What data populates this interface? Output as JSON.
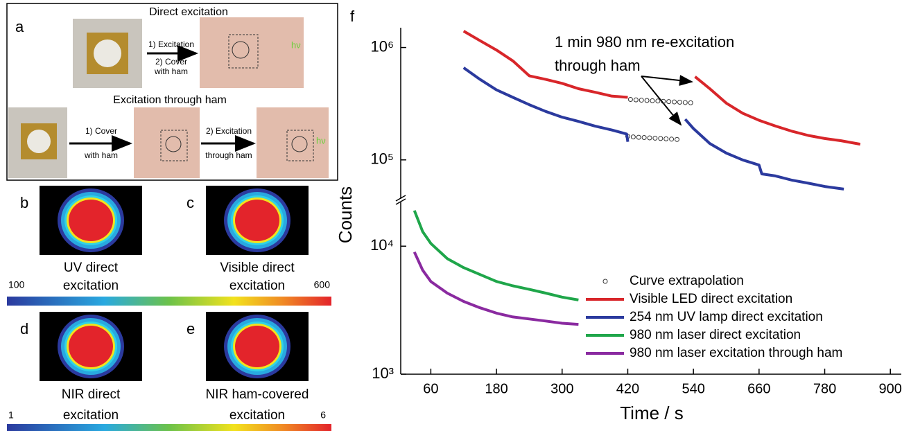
{
  "panel_a": {
    "label": "a",
    "direct_title": "Direct excitation",
    "direct_step1": "1) Excitation",
    "direct_step2_line1": "2) Cover",
    "direct_step2_line2": "with ham",
    "direct_emission": "hν",
    "through_title": "Excitation through ham",
    "through_step1_line1": "1) Cover",
    "through_step1_line2": "with ham",
    "through_step2_line1": "2) Excitation",
    "through_step2_line2": "through ham",
    "through_emission": "hν"
  },
  "panels_b_to_e": [
    {
      "label": "b",
      "caption": [
        "UV direct",
        "excitation"
      ]
    },
    {
      "label": "c",
      "caption": [
        "Visible direct",
        "excitation"
      ]
    },
    {
      "label": "d",
      "caption": [
        "NIR direct",
        "excitation"
      ]
    },
    {
      "label": "e",
      "caption": [
        "NIR ham-covered",
        "excitation"
      ]
    }
  ],
  "colorbars": [
    {
      "min": 100,
      "max": 600
    },
    {
      "min": 1,
      "max": 6
    }
  ],
  "chart_data": {
    "type": "line",
    "label": "f",
    "xlabel": "Time / s",
    "ylabel": "Counts",
    "log_y": true,
    "xlim": [
      5,
      920
    ],
    "ylim": [
      1000,
      1500000
    ],
    "y_break": [
      22000,
      45000
    ],
    "xticks": [
      60,
      180,
      300,
      420,
      540,
      660,
      780,
      900
    ],
    "yticks": [
      {
        "value": 1000,
        "label": "10³"
      },
      {
        "value": 10000,
        "label": "10⁴"
      },
      {
        "value": 100000,
        "label": "10⁵"
      },
      {
        "value": 1000000,
        "label": "10⁶"
      }
    ],
    "annotation": [
      "1 min 980 nm re-excitation",
      "through ham"
    ],
    "legend": "lower right",
    "series": [
      {
        "name": "Curve extrapolation",
        "type": "scatter",
        "color": "#333333",
        "x": [
          425,
          435,
          445,
          455,
          465,
          475,
          485,
          495,
          505,
          515,
          525,
          535,
          420,
          430,
          440,
          450,
          460,
          470,
          480,
          490,
          500,
          510
        ],
        "values": [
          345000,
          342000,
          340000,
          338000,
          336000,
          334000,
          332000,
          330000,
          328000,
          326000,
          324000,
          322000,
          162000,
          160000,
          159000,
          158000,
          157000,
          156000,
          155000,
          154000,
          153000,
          152000
        ]
      },
      {
        "name": "Visible LED direct excitation",
        "color": "#d8262a",
        "x": [
          120,
          150,
          180,
          210,
          240,
          270,
          300,
          330,
          360,
          390,
          420,
          480,
          543,
          570,
          600,
          630,
          660,
          690,
          720,
          750,
          780,
          810,
          845
        ],
        "values": [
          1400000,
          1150000,
          950000,
          760000,
          560000,
          520000,
          480000,
          430000,
          400000,
          370000,
          360000,
          null,
          550000,
          430000,
          320000,
          260000,
          225000,
          200000,
          180000,
          165000,
          155000,
          148000,
          138000
        ]
      },
      {
        "name": "254 nm UV lamp direct excitation",
        "color": "#2b3a9e",
        "x": [
          120,
          150,
          180,
          210,
          240,
          270,
          300,
          330,
          360,
          390,
          418,
          420,
          470,
          525,
          540,
          570,
          600,
          630,
          660,
          665,
          690,
          720,
          750,
          780,
          815
        ],
        "values": [
          660000,
          520000,
          420000,
          360000,
          310000,
          270000,
          240000,
          220000,
          200000,
          185000,
          170000,
          145000,
          null,
          230000,
          190000,
          140000,
          115000,
          100000,
          90000,
          75000,
          72000,
          66000,
          62000,
          58000,
          55000
        ]
      },
      {
        "name": "980 nm laser direct excitation",
        "color": "#1fa64a",
        "x": [
          30,
          45,
          60,
          90,
          120,
          150,
          180,
          210,
          240,
          270,
          300,
          330
        ],
        "values": [
          19000,
          13000,
          10500,
          8000,
          6800,
          6000,
          5300,
          4900,
          4600,
          4300,
          4000,
          3800
        ]
      },
      {
        "name": "980 nm laser excitation through ham",
        "color": "#8a2aa0",
        "x": [
          30,
          45,
          60,
          90,
          120,
          150,
          180,
          210,
          240,
          270,
          300,
          330
        ],
        "values": [
          9000,
          6500,
          5300,
          4300,
          3700,
          3300,
          3000,
          2800,
          2700,
          2600,
          2500,
          2450
        ]
      }
    ]
  }
}
